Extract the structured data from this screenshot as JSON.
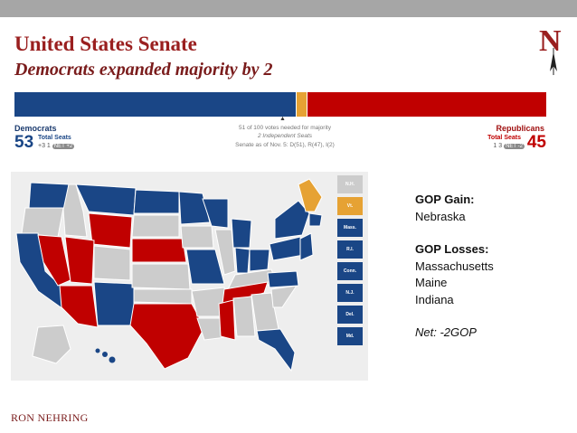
{
  "colors": {
    "democrat": "#1a4686",
    "independent": "#e6a234",
    "republican": "#c00000",
    "undecided": "#cccccc",
    "title": "#9a1f1f"
  },
  "logo_letter": "N",
  "title": "United States Senate",
  "subtitle": "Democrats expanded majority by 2",
  "seats": {
    "total": 100,
    "democrat": 53,
    "independent": 2,
    "republican": 45
  },
  "tracker": {
    "dem_label": "Democrats",
    "dem_count": "53",
    "dem_total_label": "Total Seats",
    "dem_changes": "+3  1",
    "dem_net": "NET +2",
    "gop_label": "Republicans",
    "gop_count": "45",
    "gop_total_label": "Total Seats",
    "gop_changes": "1  3",
    "gop_net": "NET -2",
    "majority_note": "51 of 100 votes needed for majority",
    "independent_note": "2 Independent Seats",
    "asof_note": "Senate as of Nov. 5: D(51), R(47), I(2)"
  },
  "map": {
    "icon": "us-senate-map",
    "legend": [
      {
        "label": "N.H.",
        "party": "undecided"
      },
      {
        "label": "Vt.",
        "party": "independent"
      },
      {
        "label": "Mass.",
        "party": "democrat"
      },
      {
        "label": "R.I.",
        "party": "democrat"
      },
      {
        "label": "Conn.",
        "party": "democrat"
      },
      {
        "label": "N.J.",
        "party": "democrat"
      },
      {
        "label": "Del.",
        "party": "democrat"
      },
      {
        "label": "Md.",
        "party": "democrat"
      }
    ]
  },
  "notes": {
    "gain_heading": "GOP Gain:",
    "gain_state": "Nebraska",
    "loss_heading": "GOP Losses:",
    "loss_states": [
      "Massachusetts",
      "Maine",
      "Indiana"
    ],
    "net": "Net: -2GOP"
  },
  "footer": "RON NEHRING"
}
